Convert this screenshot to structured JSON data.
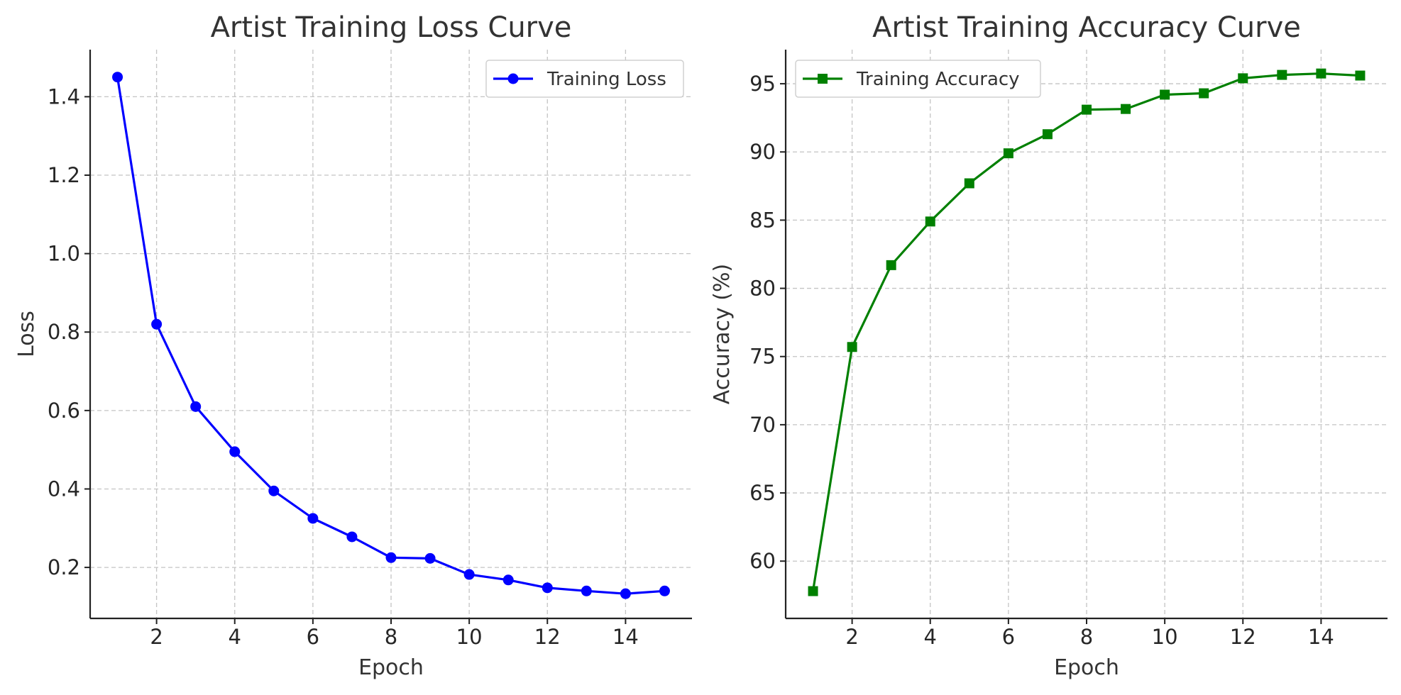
{
  "chart_data": [
    {
      "type": "line",
      "title": "Artist Training Loss Curve",
      "xlabel": "Epoch",
      "ylabel": "Loss",
      "xlim": [
        0.3,
        15.7
      ],
      "ylim": [
        0.07,
        1.52
      ],
      "xticks": [
        2,
        4,
        6,
        8,
        10,
        12,
        14
      ],
      "yticks": [
        0.2,
        0.4,
        0.6,
        0.8,
        1.0,
        1.2,
        1.4
      ],
      "ytick_labels": [
        "0.2",
        "0.4",
        "0.6",
        "0.8",
        "1.0",
        "1.2",
        "1.4"
      ],
      "grid": true,
      "legend_position": "upper right",
      "series": [
        {
          "name": "Training Loss",
          "color": "#0000ff",
          "marker": "circle",
          "x": [
            1,
            2,
            3,
            4,
            5,
            6,
            7,
            8,
            9,
            10,
            11,
            12,
            13,
            14,
            15
          ],
          "y": [
            1.45,
            0.82,
            0.61,
            0.495,
            0.395,
            0.325,
            0.278,
            0.225,
            0.223,
            0.182,
            0.168,
            0.148,
            0.14,
            0.133,
            0.14
          ]
        }
      ]
    },
    {
      "type": "line",
      "title": "Artist Training Accuracy Curve",
      "xlabel": "Epoch",
      "ylabel": "Accuracy (%)",
      "xlim": [
        0.3,
        15.7
      ],
      "ylim": [
        55.8,
        97.5
      ],
      "xticks": [
        2,
        4,
        6,
        8,
        10,
        12,
        14
      ],
      "yticks": [
        60,
        65,
        70,
        75,
        80,
        85,
        90,
        95
      ],
      "ytick_labels": [
        "60",
        "65",
        "70",
        "75",
        "80",
        "85",
        "90",
        "95"
      ],
      "grid": true,
      "legend_position": "upper left",
      "series": [
        {
          "name": "Training Accuracy",
          "color": "#008000",
          "marker": "square",
          "x": [
            1,
            2,
            3,
            4,
            5,
            6,
            7,
            8,
            9,
            10,
            11,
            12,
            13,
            14,
            15
          ],
          "y": [
            57.8,
            75.7,
            81.7,
            84.9,
            87.7,
            89.9,
            91.3,
            93.1,
            93.15,
            94.2,
            94.3,
            95.4,
            95.65,
            95.75,
            95.6
          ]
        }
      ]
    }
  ]
}
